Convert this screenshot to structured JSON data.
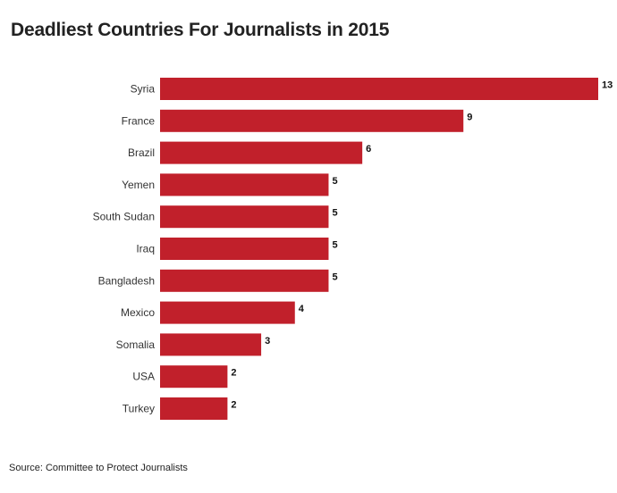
{
  "chart_data": {
    "type": "bar",
    "orientation": "horizontal",
    "title": "Deadliest Countries For Journalists in 2015",
    "source": "Source: Committee to Protect Journalists",
    "categories": [
      "Syria",
      "France",
      "Brazil",
      "Yemen",
      "South Sudan",
      "Iraq",
      "Bangladesh",
      "Mexico",
      "Somalia",
      "USA",
      "Turkey"
    ],
    "values": [
      13,
      9,
      6,
      5,
      5,
      5,
      5,
      4,
      3,
      2,
      2
    ],
    "xlim": [
      0,
      13
    ],
    "grid": false,
    "bar_color": "#c1202b"
  }
}
